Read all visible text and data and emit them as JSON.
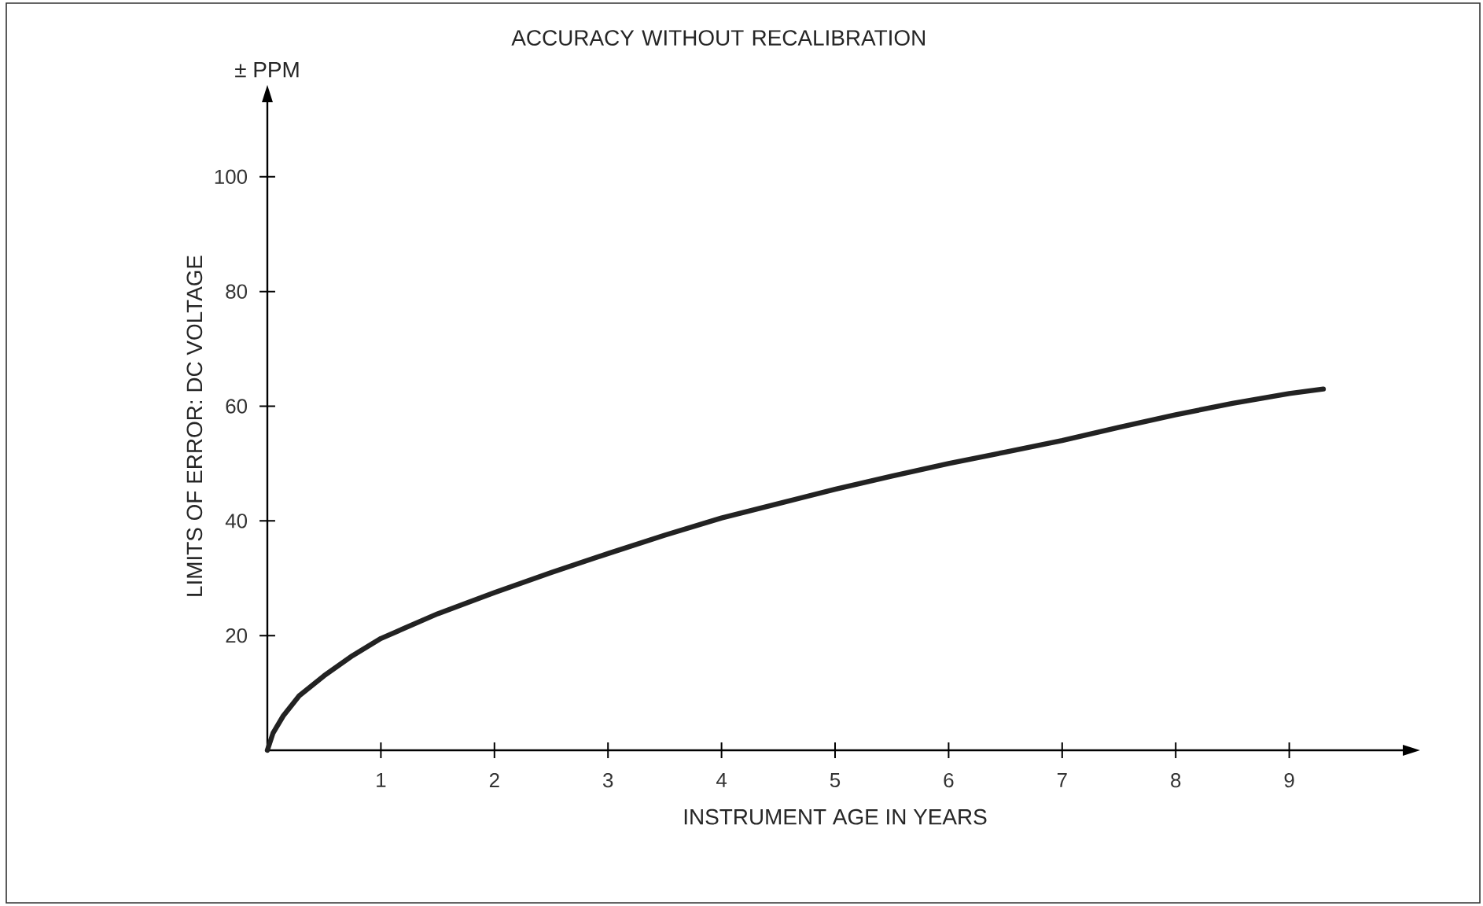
{
  "chart_data": {
    "type": "line",
    "title": "ACCURACY WITHOUT RECALIBRATION",
    "xlabel": "INSTRUMENT AGE IN YEARS",
    "ylabel": "LIMITS OF ERROR: DC VOLTAGE",
    "annotations": [
      "± PPM"
    ],
    "x": [
      0,
      0.05,
      0.14,
      0.28,
      0.5,
      0.75,
      1,
      1.5,
      2,
      2.5,
      3,
      3.5,
      4,
      4.5,
      5,
      5.5,
      6,
      6.5,
      7,
      7.5,
      8,
      8.5,
      9,
      9.3
    ],
    "series": [
      {
        "color": "#222222",
        "values": [
          0,
          3,
          6,
          9.5,
          13,
          16.5,
          19.5,
          23.8,
          27.5,
          31,
          34.3,
          37.5,
          40.5,
          43,
          45.5,
          47.8,
          50,
          52,
          54,
          56.3,
          58.5,
          60.5,
          62.2,
          63
        ]
      }
    ],
    "xlim": [
      0,
      10
    ],
    "ylim": [
      0,
      113
    ],
    "xticks": [
      1,
      2,
      3,
      4,
      5,
      6,
      7,
      8,
      9
    ],
    "yticks": [
      20,
      40,
      60,
      80,
      100
    ],
    "grid": false
  }
}
